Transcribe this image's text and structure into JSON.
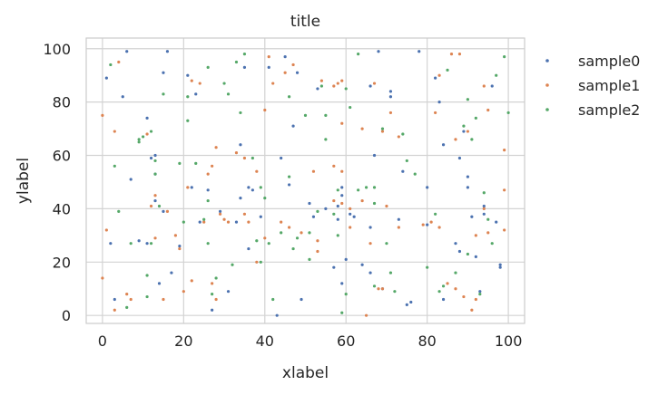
{
  "chart_data": {
    "type": "scatter",
    "title": "title",
    "xlabel": "xlabel",
    "ylabel": "ylabel",
    "xlim": [
      -4,
      104
    ],
    "ylim": [
      -3,
      104
    ],
    "xticks": [
      0,
      20,
      40,
      60,
      80,
      100
    ],
    "yticks": [
      0,
      20,
      40,
      60,
      80,
      100
    ],
    "grid": true,
    "legend_position": "outside-right-top",
    "series": [
      {
        "name": "sample0",
        "color": "#4c72b0",
        "points": [
          [
            1,
            89
          ],
          [
            2,
            27
          ],
          [
            3,
            6
          ],
          [
            5,
            82
          ],
          [
            6,
            99
          ],
          [
            7,
            51
          ],
          [
            9,
            28
          ],
          [
            11,
            27
          ],
          [
            11,
            74
          ],
          [
            12,
            59
          ],
          [
            13,
            60
          ],
          [
            13,
            53
          ],
          [
            13,
            43
          ],
          [
            14,
            12
          ],
          [
            15,
            91
          ],
          [
            15,
            39
          ],
          [
            16,
            99
          ],
          [
            17,
            16
          ],
          [
            19,
            26
          ],
          [
            21,
            90
          ],
          [
            22,
            48
          ],
          [
            23,
            83
          ],
          [
            24,
            35
          ],
          [
            26,
            47
          ],
          [
            27,
            2
          ],
          [
            29,
            39
          ],
          [
            31,
            9
          ],
          [
            33,
            35
          ],
          [
            34,
            44
          ],
          [
            34,
            64
          ],
          [
            35,
            93
          ],
          [
            36,
            48
          ],
          [
            36,
            25
          ],
          [
            37,
            47
          ],
          [
            39,
            37
          ],
          [
            41,
            93
          ],
          [
            43,
            0
          ],
          [
            44,
            59
          ],
          [
            45,
            97
          ],
          [
            46,
            49
          ],
          [
            47,
            71
          ],
          [
            48,
            91
          ],
          [
            49,
            6
          ],
          [
            51,
            42
          ],
          [
            52,
            37
          ],
          [
            53,
            85
          ],
          [
            55,
            40
          ],
          [
            57,
            18
          ],
          [
            58,
            36
          ],
          [
            58,
            41
          ],
          [
            59,
            12
          ],
          [
            59,
            48
          ],
          [
            59,
            45
          ],
          [
            60,
            21
          ],
          [
            61,
            38
          ],
          [
            62,
            37
          ],
          [
            64,
            19
          ],
          [
            66,
            33
          ],
          [
            66,
            86
          ],
          [
            66,
            16
          ],
          [
            67,
            60
          ],
          [
            68,
            99
          ],
          [
            69,
            10
          ],
          [
            71,
            84
          ],
          [
            71,
            82
          ],
          [
            73,
            36
          ],
          [
            74,
            54
          ],
          [
            75,
            4
          ],
          [
            76,
            5
          ],
          [
            78,
            99
          ],
          [
            80,
            48
          ],
          [
            80,
            34
          ],
          [
            82,
            89
          ],
          [
            83,
            80
          ],
          [
            84,
            64
          ],
          [
            84,
            6
          ],
          [
            87,
            27
          ],
          [
            88,
            59
          ],
          [
            88,
            24
          ],
          [
            89,
            69
          ],
          [
            90,
            48
          ],
          [
            90,
            52
          ],
          [
            91,
            37
          ],
          [
            92,
            22
          ],
          [
            93,
            9
          ],
          [
            94,
            38
          ],
          [
            94,
            41
          ],
          [
            96,
            86
          ],
          [
            97,
            35
          ],
          [
            98,
            18
          ],
          [
            98,
            19
          ]
        ]
      },
      {
        "name": "sample1",
        "color": "#dd8452",
        "points": [
          [
            0,
            75
          ],
          [
            0,
            14
          ],
          [
            1,
            32
          ],
          [
            3,
            2
          ],
          [
            3,
            69
          ],
          [
            4,
            95
          ],
          [
            6,
            8
          ],
          [
            7,
            6
          ],
          [
            11,
            68
          ],
          [
            12,
            41
          ],
          [
            13,
            45
          ],
          [
            13,
            29
          ],
          [
            15,
            6
          ],
          [
            16,
            39
          ],
          [
            18,
            30
          ],
          [
            19,
            25
          ],
          [
            20,
            9
          ],
          [
            21,
            48
          ],
          [
            22,
            88
          ],
          [
            22,
            13
          ],
          [
            24,
            87
          ],
          [
            25,
            35
          ],
          [
            26,
            53
          ],
          [
            27,
            12
          ],
          [
            27,
            56
          ],
          [
            28,
            6
          ],
          [
            28,
            63
          ],
          [
            29,
            38
          ],
          [
            30,
            36
          ],
          [
            31,
            35
          ],
          [
            33,
            61
          ],
          [
            35,
            38
          ],
          [
            35,
            59
          ],
          [
            36,
            35
          ],
          [
            38,
            20
          ],
          [
            38,
            54
          ],
          [
            40,
            77
          ],
          [
            40,
            29
          ],
          [
            41,
            97
          ],
          [
            42,
            87
          ],
          [
            44,
            35
          ],
          [
            45,
            91
          ],
          [
            46,
            33
          ],
          [
            47,
            94
          ],
          [
            49,
            31
          ],
          [
            52,
            54
          ],
          [
            53,
            28
          ],
          [
            53,
            24
          ],
          [
            54,
            88
          ],
          [
            57,
            86
          ],
          [
            57,
            43
          ],
          [
            57,
            56
          ],
          [
            58,
            87
          ],
          [
            59,
            54
          ],
          [
            59,
            42
          ],
          [
            59,
            72
          ],
          [
            59,
            88
          ],
          [
            61,
            40
          ],
          [
            61,
            33
          ],
          [
            64,
            70
          ],
          [
            64,
            43
          ],
          [
            65,
            0
          ],
          [
            66,
            27
          ],
          [
            67,
            87
          ],
          [
            68,
            10
          ],
          [
            69,
            10
          ],
          [
            69,
            69
          ],
          [
            70,
            41
          ],
          [
            71,
            76
          ],
          [
            73,
            33
          ],
          [
            73,
            67
          ],
          [
            79,
            34
          ],
          [
            81,
            35
          ],
          [
            82,
            76
          ],
          [
            83,
            33
          ],
          [
            83,
            90
          ],
          [
            85,
            12
          ],
          [
            86,
            98
          ],
          [
            87,
            66
          ],
          [
            87,
            10
          ],
          [
            88,
            98
          ],
          [
            89,
            7
          ],
          [
            90,
            69
          ],
          [
            91,
            2
          ],
          [
            92,
            6
          ],
          [
            92,
            30
          ],
          [
            94,
            86
          ],
          [
            94,
            40
          ],
          [
            95,
            31
          ],
          [
            95,
            77
          ],
          [
            99,
            47
          ],
          [
            99,
            62
          ],
          [
            99,
            32
          ]
        ]
      },
      {
        "name": "sample2",
        "color": "#55a868",
        "points": [
          [
            2,
            94
          ],
          [
            3,
            56
          ],
          [
            4,
            39
          ],
          [
            6,
            3
          ],
          [
            7,
            27
          ],
          [
            9,
            65
          ],
          [
            9,
            66
          ],
          [
            10,
            67
          ],
          [
            11,
            15
          ],
          [
            11,
            7
          ],
          [
            12,
            27
          ],
          [
            12,
            69
          ],
          [
            13,
            58
          ],
          [
            13,
            53
          ],
          [
            14,
            41
          ],
          [
            15,
            83
          ],
          [
            19,
            57
          ],
          [
            20,
            35
          ],
          [
            21,
            82
          ],
          [
            21,
            73
          ],
          [
            23,
            57
          ],
          [
            25,
            36
          ],
          [
            26,
            43
          ],
          [
            26,
            27
          ],
          [
            26,
            93
          ],
          [
            27,
            8
          ],
          [
            28,
            14
          ],
          [
            30,
            87
          ],
          [
            31,
            83
          ],
          [
            32,
            19
          ],
          [
            33,
            95
          ],
          [
            34,
            76
          ],
          [
            35,
            98
          ],
          [
            37,
            59
          ],
          [
            38,
            28
          ],
          [
            39,
            48
          ],
          [
            39,
            20
          ],
          [
            40,
            44
          ],
          [
            41,
            27
          ],
          [
            42,
            6
          ],
          [
            44,
            31
          ],
          [
            46,
            52
          ],
          [
            46,
            82
          ],
          [
            47,
            25
          ],
          [
            48,
            29
          ],
          [
            50,
            75
          ],
          [
            51,
            21
          ],
          [
            51,
            31
          ],
          [
            53,
            39
          ],
          [
            54,
            86
          ],
          [
            55,
            75
          ],
          [
            55,
            66
          ],
          [
            57,
            38
          ],
          [
            58,
            30
          ],
          [
            58,
            47
          ],
          [
            59,
            1
          ],
          [
            60,
            85
          ],
          [
            60,
            8
          ],
          [
            61,
            78
          ],
          [
            63,
            47
          ],
          [
            63,
            98
          ],
          [
            65,
            48
          ],
          [
            67,
            42
          ],
          [
            67,
            11
          ],
          [
            67,
            48
          ],
          [
            69,
            70
          ],
          [
            70,
            27
          ],
          [
            71,
            16
          ],
          [
            72,
            9
          ],
          [
            74,
            68
          ],
          [
            75,
            58
          ],
          [
            77,
            53
          ],
          [
            80,
            18
          ],
          [
            82,
            38
          ],
          [
            83,
            9
          ],
          [
            84,
            11
          ],
          [
            85,
            92
          ],
          [
            87,
            16
          ],
          [
            89,
            71
          ],
          [
            90,
            81
          ],
          [
            90,
            23
          ],
          [
            91,
            66
          ],
          [
            92,
            74
          ],
          [
            93,
            8
          ],
          [
            94,
            46
          ],
          [
            95,
            36
          ],
          [
            96,
            27
          ],
          [
            97,
            90
          ],
          [
            99,
            97
          ],
          [
            100,
            76
          ]
        ]
      }
    ]
  }
}
